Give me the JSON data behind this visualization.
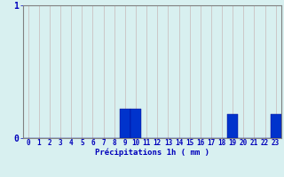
{
  "hours": [
    0,
    1,
    2,
    3,
    4,
    5,
    6,
    7,
    8,
    9,
    10,
    11,
    12,
    13,
    14,
    15,
    16,
    17,
    18,
    19,
    20,
    21,
    22,
    23
  ],
  "values": [
    0,
    0,
    0,
    0,
    0,
    0,
    0,
    0,
    0,
    0.22,
    0.22,
    0,
    0,
    0,
    0,
    0,
    0,
    0,
    0,
    0.18,
    0,
    0,
    0,
    0.18
  ],
  "bar_color": "#0033cc",
  "bar_edge_color": "#00008b",
  "background_color": "#d8f0f0",
  "grid_color_v": "#c8b8b8",
  "grid_color_h": "#e08080",
  "axis_color": "#808080",
  "text_color": "#0000bb",
  "xlabel": "Précipitations 1h ( mm )",
  "ylim": [
    0,
    1.0
  ],
  "ytick_labels": [
    "0",
    "1"
  ],
  "ytick_vals": [
    0,
    1
  ],
  "xlabel_fontsize": 6.5,
  "tick_fontsize": 5.5,
  "ylabel_fontsize": 7
}
